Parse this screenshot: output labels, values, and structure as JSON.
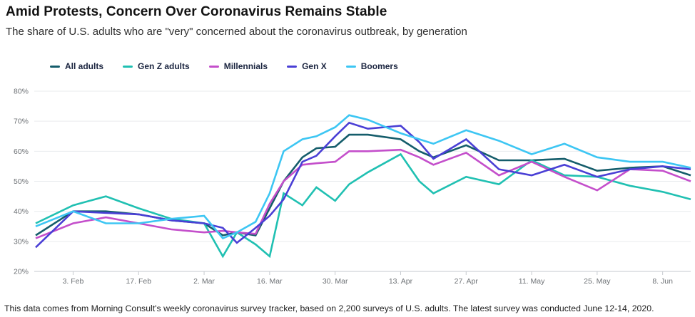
{
  "header": {
    "title": "Amid Protests, Concern Over Coronavirus Remains Stable",
    "subtitle": "The share of U.S. adults who are \"very\" concerned about the coronavirus outbreak, by generation"
  },
  "footer": {
    "text": "This data comes from Morning Consult's weekly coronavirus survey tracker, based on 2,200 surveys of U.S. adults. The latest survey was conducted June 12-14, 2020."
  },
  "chart_data": {
    "type": "line",
    "title": "Amid Protests, Concern Over Coronavirus Remains Stable",
    "xlabel": "",
    "ylabel": "",
    "ylim": [
      20,
      80
    ],
    "grid": "horizontal",
    "legend_position": "top-left",
    "y_tick_labels": [
      "20%",
      "30%",
      "40%",
      "50%",
      "60%",
      "70%",
      "80%"
    ],
    "x_tick_labels": [
      "3. Feb",
      "17. Feb",
      "2. Mar",
      "16. Mar",
      "30. Mar",
      "13. Apr",
      "27. Apr",
      "11. May",
      "25. May",
      "8. Jun"
    ],
    "x_tick_day_offsets": [
      8,
      22,
      36,
      50,
      64,
      78,
      92,
      106,
      120,
      134
    ],
    "x_dates": [
      "Jan 26",
      "Feb 3",
      "Feb 10",
      "Feb 17",
      "Feb 24",
      "Mar 2",
      "Mar 6",
      "Mar 9",
      "Mar 13",
      "Mar 16",
      "Mar 19",
      "Mar 23",
      "Mar 26",
      "Mar 30",
      "Apr 2",
      "Apr 6",
      "Apr 13",
      "Apr 17",
      "Apr 20",
      "Apr 27",
      "May 4",
      "May 11",
      "May 18",
      "May 25",
      "Jun 1",
      "Jun 8",
      "Jun 14"
    ],
    "x_day_offsets": [
      0,
      8,
      15,
      22,
      29,
      36,
      40,
      43,
      47,
      50,
      53,
      57,
      60,
      64,
      67,
      71,
      78,
      82,
      85,
      92,
      99,
      106,
      113,
      120,
      127,
      134,
      140
    ],
    "series": [
      {
        "name": "All adults",
        "color": "#155d6b",
        "values": [
          32,
          40,
          40,
          39,
          37,
          36,
          32,
          33,
          32,
          41,
          50,
          58,
          61,
          61.5,
          65.5,
          65.5,
          64,
          60,
          58,
          62,
          57,
          57,
          57.5,
          53.5,
          54.5,
          55,
          52
        ]
      },
      {
        "name": "Gen Z adults",
        "color": "#20c0b2",
        "values": [
          36,
          42,
          45,
          41,
          37.5,
          36,
          25,
          33,
          29,
          25,
          46,
          42,
          48,
          43.5,
          49,
          53,
          59,
          50,
          46,
          51.5,
          49,
          57,
          52,
          51.5,
          48.5,
          46.5,
          44
        ]
      },
      {
        "name": "Millennials",
        "color": "#c44fcb",
        "values": [
          31,
          36,
          38,
          36,
          34,
          33,
          33.5,
          33,
          32.5,
          42.5,
          50,
          55.5,
          56,
          56.5,
          60,
          60,
          60.5,
          58,
          55.5,
          59.5,
          52,
          56.5,
          51.5,
          47,
          54,
          53.5,
          50
        ]
      },
      {
        "name": "Gen X",
        "color": "#4a3fd5",
        "values": [
          28,
          40,
          39.5,
          39,
          37,
          36,
          34.5,
          29.5,
          34.5,
          38.5,
          44,
          56.5,
          58.5,
          65,
          69.5,
          67.5,
          68.5,
          63,
          57.5,
          64,
          54,
          52,
          55.5,
          51.5,
          54,
          55,
          54
        ]
      },
      {
        "name": "Boomers",
        "color": "#3dc6f3",
        "values": [
          35,
          40,
          36,
          36,
          37.5,
          38.5,
          31,
          33,
          36.5,
          46,
          60,
          64,
          65,
          68,
          72,
          70.5,
          66,
          64,
          62.5,
          67,
          63.5,
          59,
          62.5,
          58,
          56.5,
          56.5,
          54.5
        ]
      }
    ]
  },
  "theme": {
    "background": "#ffffff",
    "title_color": "#121212",
    "subtitle_color": "#2e2e2e",
    "legend_text_color": "#1b2540",
    "axis_label_color": "#6d7175",
    "grid_color": "#e9ebee",
    "axis_line_color": "#c6cacf",
    "footnote_color": "#1f1f1f"
  }
}
